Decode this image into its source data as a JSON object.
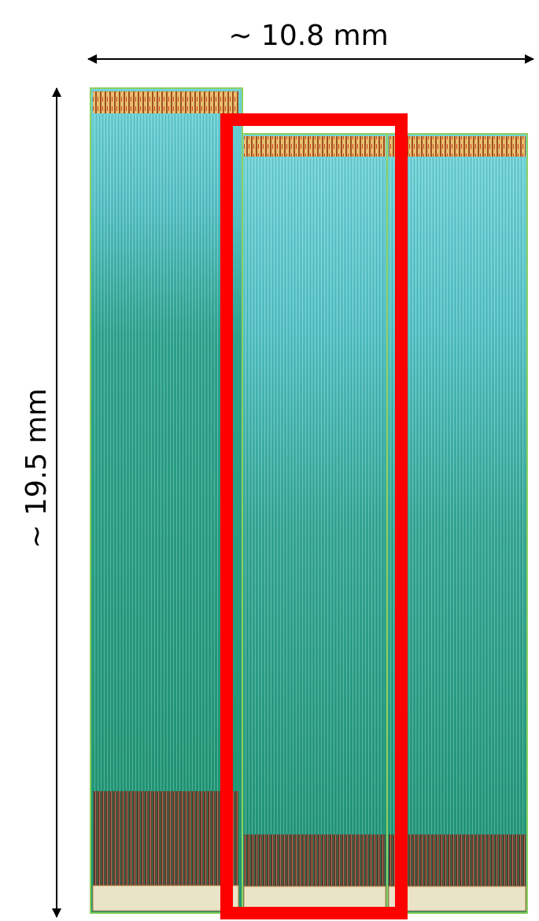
{
  "dimensions": {
    "width_label": "~ 10.8 mm",
    "height_label": "~ 19.5 mm"
  }
}
